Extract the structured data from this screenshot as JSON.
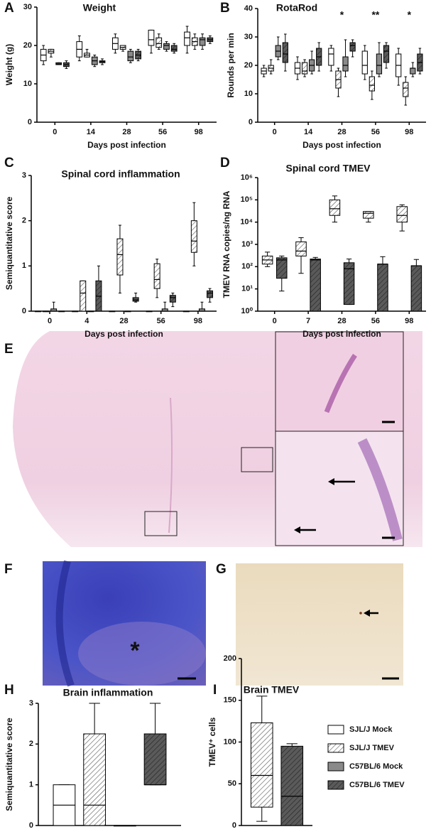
{
  "legend": [
    {
      "name": "SJL/J Mock",
      "color": "#ffffff",
      "hatch": false
    },
    {
      "name": "SJL/J TMEV",
      "color": "#ffffff",
      "hatch": true
    },
    {
      "name": "C57BL/6 Mock",
      "color": "#8a8a8a",
      "hatch": false
    },
    {
      "name": "C57BL/6 TMEV",
      "color": "#5a5a5a",
      "hatch": true
    }
  ],
  "images": [
    {
      "panel": "E"
    },
    {
      "panel": "F",
      "annotation": "*"
    },
    {
      "panel": "G"
    }
  ],
  "chart_data": [
    {
      "type": "box",
      "panel": "A",
      "title": "Weight",
      "ylabel": "Weight (g)",
      "xlabel": "Days post infection",
      "categories": [
        "0",
        "14",
        "28",
        "56",
        "98"
      ],
      "ylim": [
        0,
        30
      ],
      "yticks": [
        0,
        10,
        20,
        30
      ],
      "series": [
        {
          "color": "#ffffff",
          "hatch": false,
          "values": [
            [
              15,
              16,
              17.5,
              19,
              20
            ],
            [
              16,
              17,
              19,
              21,
              22.5
            ],
            [
              18,
              19,
              20.5,
              22,
              23
            ],
            [
              18,
              20,
              21.5,
              24,
              24
            ],
            [
              18,
              20,
              22,
              23.5,
              25
            ]
          ]
        },
        {
          "color": "#ffffff",
          "hatch": true,
          "values": [
            [
              17,
              18,
              18.5,
              19,
              19
            ],
            [
              17,
              17,
              17.5,
              18,
              19
            ],
            [
              18.5,
              19,
              19.5,
              20,
              20
            ],
            [
              19,
              19.5,
              20.5,
              22,
              23
            ],
            [
              19,
              20,
              21,
              22,
              23
            ]
          ]
        },
        {
          "color": "#8a8a8a",
          "hatch": false,
          "values": [
            [
              15,
              15,
              15.2,
              15.5,
              15.5
            ],
            [
              14.5,
              15,
              16,
              17,
              17.5
            ],
            [
              15.5,
              16,
              17,
              18.5,
              19
            ],
            [
              18.5,
              19,
              20,
              20.5,
              21
            ],
            [
              19,
              20,
              21.5,
              22,
              23
            ]
          ]
        },
        {
          "color": "#5a5a5a",
          "hatch": true,
          "values": [
            [
              14,
              14.5,
              15,
              15.5,
              16
            ],
            [
              15,
              15.5,
              15.8,
              16,
              16.5
            ],
            [
              16,
              16.5,
              17.5,
              18.5,
              19
            ],
            [
              18,
              18.5,
              19,
              20,
              20.5
            ],
            [
              20.5,
              21,
              21.5,
              22,
              22.5
            ]
          ]
        }
      ]
    },
    {
      "type": "box",
      "panel": "B",
      "title": "RotaRod",
      "ylabel": "Rounds per min",
      "xlabel": "Days post infection",
      "categories": [
        "0",
        "14",
        "28",
        "56",
        "98"
      ],
      "significance": [
        null,
        null,
        "*",
        "**",
        "*"
      ],
      "ylim": [
        0,
        40
      ],
      "yticks": [
        0,
        10,
        20,
        30,
        40
      ],
      "series": [
        {
          "color": "#ffffff",
          "hatch": false,
          "values": [
            [
              16,
              17,
              18,
              19,
              20
            ],
            [
              15,
              17,
              19,
              21,
              23
            ],
            [
              18,
              20,
              24,
              26,
              27
            ],
            [
              15,
              17,
              20,
              25,
              27
            ],
            [
              13,
              16,
              20,
              24,
              26
            ]
          ]
        },
        {
          "color": "#ffffff",
          "hatch": true,
          "values": [
            [
              17,
              18,
              19,
              20,
              22
            ],
            [
              16,
              17,
              18,
              21,
              22
            ],
            [
              9,
              12,
              15,
              18,
              19
            ],
            [
              8,
              11,
              13,
              16,
              18
            ],
            [
              6,
              9,
              12,
              14,
              16
            ]
          ]
        },
        {
          "color": "#8a8a8a",
          "hatch": false,
          "values": [
            [
              22,
              23,
              25,
              27,
              30
            ],
            [
              17,
              18,
              20,
              22,
              25
            ],
            [
              16,
              18,
              20,
              23,
              29
            ],
            [
              16,
              17,
              20,
              24,
              28
            ],
            [
              16,
              17,
              19,
              19,
              21
            ]
          ]
        },
        {
          "color": "#5a5a5a",
          "hatch": true,
          "values": [
            [
              18,
              21,
              24,
              28,
              31
            ],
            [
              18,
              20,
              23,
              26,
              28
            ],
            [
              23,
              25,
              27,
              28,
              29
            ],
            [
              19,
              21,
              25,
              27,
              28
            ],
            [
              17,
              18,
              21,
              24,
              26
            ]
          ]
        }
      ]
    },
    {
      "type": "box",
      "panel": "C",
      "title": "Spinal cord inflammation",
      "ylabel": "Semiquantitative score",
      "xlabel": "Days post infection",
      "categories": [
        "0",
        "4",
        "28",
        "56",
        "98"
      ],
      "ylim": [
        0,
        3
      ],
      "yticks": [
        0,
        1,
        2,
        3
      ],
      "series": [
        {
          "color": "#ffffff",
          "hatch": false,
          "values": [
            [
              0,
              0,
              0,
              0,
              0
            ],
            [
              0,
              0,
              0,
              0,
              0
            ],
            [
              0,
              0,
              0,
              0,
              0
            ],
            [
              0,
              0,
              0,
              0,
              0
            ],
            [
              0,
              0,
              0,
              0,
              0
            ]
          ]
        },
        {
          "color": "#ffffff",
          "hatch": true,
          "values": [
            [
              0,
              0,
              0,
              0,
              0
            ],
            [
              0,
              0,
              0.4,
              0.67,
              0.67
            ],
            [
              0.4,
              0.8,
              1.25,
              1.6,
              1.9
            ],
            [
              0.3,
              0.5,
              0.7,
              1.05,
              1.15
            ],
            [
              1,
              1.3,
              1.55,
              2,
              2.4
            ]
          ]
        },
        {
          "color": "#8a8a8a",
          "hatch": false,
          "values": [
            [
              0,
              0,
              0,
              0.05,
              0.2
            ],
            [
              0,
              0,
              0,
              0,
              0
            ],
            [
              0,
              0,
              0,
              0,
              0
            ],
            [
              0,
              0,
              0,
              0.05,
              0.2
            ],
            [
              0,
              0,
              0,
              0.05,
              0.2
            ]
          ]
        },
        {
          "color": "#5a5a5a",
          "hatch": true,
          "values": [
            [
              0,
              0,
              0,
              0,
              0
            ],
            [
              0,
              0,
              0.33,
              0.67,
              1
            ],
            [
              0.2,
              0.22,
              0.25,
              0.3,
              0.4
            ],
            [
              0.1,
              0.2,
              0.3,
              0.35,
              0.4
            ],
            [
              0.2,
              0.3,
              0.4,
              0.45,
              0.5
            ]
          ]
        }
      ]
    },
    {
      "type": "box",
      "panel": "D",
      "title": "Spinal cord  TMEV",
      "ylabel": "TMEV RNA copies/ng RNA",
      "xlabel": "Days post infection",
      "categories": [
        "0",
        "7",
        "28",
        "56",
        "98"
      ],
      "log": true,
      "ylim": [
        1,
        1000000
      ],
      "yticks": [
        {
          "value": 1,
          "label": "10⁰"
        },
        {
          "value": 10,
          "label": "10¹"
        },
        {
          "value": 100,
          "label": "10²"
        },
        {
          "value": 1000,
          "label": "10³"
        },
        {
          "value": 10000,
          "label": "10⁴"
        },
        {
          "value": 100000,
          "label": "10⁵"
        },
        {
          "value": 1000000,
          "label": "10⁶"
        }
      ],
      "series": [
        {
          "color": "#ffffff",
          "hatch": true,
          "values": [
            [
              100,
              130,
              200,
              300,
              450
            ],
            [
              50,
              300,
              500,
              1300,
              2000
            ],
            [
              10000,
              20000,
              40000,
              100000,
              150000
            ],
            [
              10000,
              15000,
              25000,
              30000,
              30000
            ],
            [
              4000,
              10000,
              20000,
              50000,
              60000
            ]
          ]
        },
        {
          "color": "#5a5a5a",
          "hatch": true,
          "values": [
            [
              8,
              30,
              200,
              250,
              300
            ],
            [
              1,
              1,
              200,
              220,
              260
            ],
            [
              2,
              2,
              80,
              150,
              220
            ],
            [
              1,
              1,
              130,
              130,
              280
            ],
            [
              1,
              1,
              110,
              110,
              210
            ]
          ]
        }
      ]
    },
    {
      "type": "box",
      "panel": "H",
      "title": "Brain inflammation",
      "ylabel": "Semiquantitative score",
      "categories": [
        null
      ],
      "ylim": [
        0,
        3
      ],
      "yticks": [
        0,
        1,
        2,
        3
      ],
      "series": [
        {
          "color": "#ffffff",
          "hatch": false,
          "values": [
            [
              0,
              0,
              0.5,
              1,
              1
            ]
          ]
        },
        {
          "color": "#ffffff",
          "hatch": true,
          "values": [
            [
              0,
              0,
              0.5,
              2.25,
              3
            ]
          ]
        },
        {
          "color": "#8a8a8a",
          "hatch": false,
          "values": [
            [
              0,
              0,
              0,
              0,
              0
            ]
          ]
        },
        {
          "color": "#5a5a5a",
          "hatch": true,
          "values": [
            [
              1,
              1,
              1,
              2.25,
              3
            ]
          ]
        }
      ]
    },
    {
      "type": "box",
      "panel": "I",
      "title": "Brain TMEV",
      "ylabel": "TMEV⁺ cells",
      "categories": [
        null
      ],
      "ylim": [
        0,
        200
      ],
      "yticks": [
        0,
        50,
        100,
        150,
        200
      ],
      "series": [
        {
          "color": "#ffffff",
          "hatch": true,
          "values": [
            [
              5,
              22,
              60,
              123,
              155
            ]
          ]
        },
        {
          "color": "#5a5a5a",
          "hatch": true,
          "values": [
            [
              0,
              0,
              35,
              95,
              98
            ]
          ]
        }
      ]
    }
  ]
}
